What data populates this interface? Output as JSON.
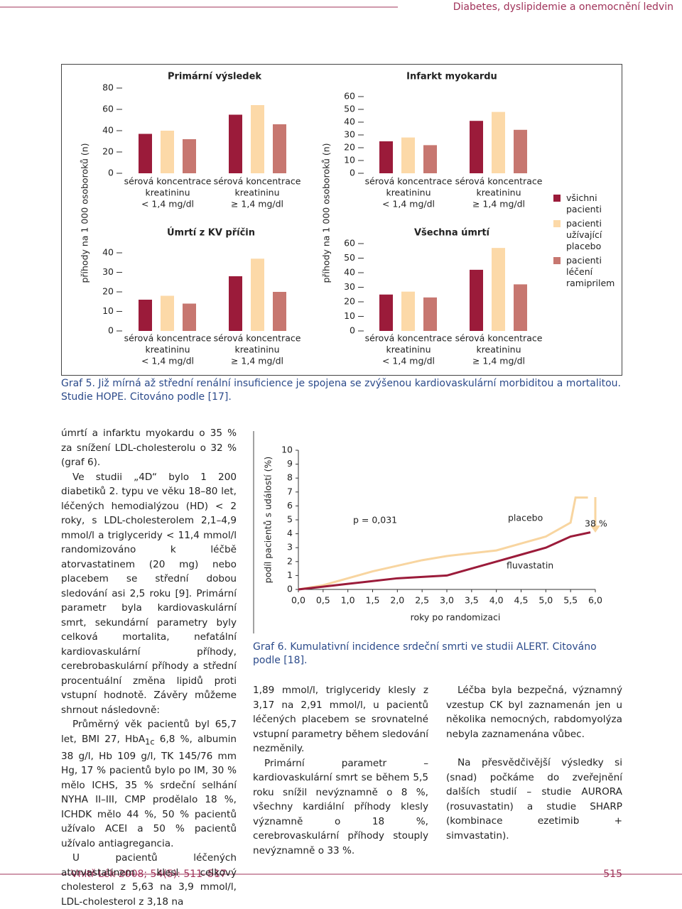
{
  "header": {
    "title": "Diabetes, dyslipidemie a onemocnění ledvin"
  },
  "graf5": {
    "y_label": "příhody na 1 000 osoboroků (n)",
    "categories": [
      [
        "sérová koncentrace",
        "kreatininu",
        "< 1,4 mg/dl"
      ],
      [
        "sérová koncentrace",
        "kreatininu",
        "≥ 1,4 mg/dl"
      ]
    ],
    "series": [
      {
        "name": "všichni pacienti",
        "color": "#9b1b3a"
      },
      {
        "name": "pacienti užívající placebo",
        "color": "#fcd9a8"
      },
      {
        "name": "pacienti léčení ramiprilem",
        "color": "#c77770"
      }
    ],
    "panels": [
      {
        "title": "Primární výsledek",
        "ylim": [
          0,
          80
        ],
        "yticks": [
          0,
          20,
          40,
          60,
          80
        ],
        "series": [
          {
            "values": [
              37,
              55
            ]
          },
          {
            "values": [
              40,
              64
            ]
          },
          {
            "values": [
              32,
              46
            ]
          }
        ]
      },
      {
        "title": "Úmrtí z KV příčin",
        "ylim": [
          0,
          40
        ],
        "yticks": [
          0,
          10,
          20,
          30,
          40
        ],
        "series": [
          {
            "values": [
              16,
              28
            ]
          },
          {
            "values": [
              18,
              37
            ]
          },
          {
            "values": [
              14,
              20
            ]
          }
        ]
      },
      {
        "title": "Infarkt myokardu",
        "ylim": [
          0,
          60
        ],
        "yticks": [
          0,
          10,
          20,
          30,
          40,
          50,
          60
        ],
        "series": [
          {
            "values": [
              25,
              41
            ]
          },
          {
            "values": [
              28,
              48
            ]
          },
          {
            "values": [
              22,
              34
            ]
          }
        ]
      },
      {
        "title": "Všechna úmrtí",
        "ylim": [
          0,
          60
        ],
        "yticks": [
          0,
          10,
          20,
          30,
          40,
          50,
          60
        ],
        "series": [
          {
            "values": [
              25,
              42
            ]
          },
          {
            "values": [
              27,
              57
            ]
          },
          {
            "values": [
              23,
              32
            ]
          }
        ]
      }
    ],
    "caption": "Graf 5. Již mírná až střední renální insuficience je spojena se zvýšenou kardiovaskulární morbiditou a mortalitou. Studie HOPE. Citováno podle [17]."
  },
  "graf6": {
    "type": "line",
    "y_label": "podíl pacientů s událostí (%)",
    "x_label": "roky po randomizaci",
    "xlim": [
      0,
      6
    ],
    "ylim": [
      0,
      10
    ],
    "xticks": [
      {
        "value": 0,
        "label": "0,0"
      },
      {
        "value": 0.5,
        "label": "0,5"
      },
      {
        "value": 1,
        "label": "1,0"
      },
      {
        "value": 1.5,
        "label": "1,5"
      },
      {
        "value": 2,
        "label": "2,0"
      },
      {
        "value": 2.5,
        "label": "2,5"
      },
      {
        "value": 3,
        "label": "3,0"
      },
      {
        "value": 3.5,
        "label": "3,5"
      },
      {
        "value": 4,
        "label": "4,0"
      },
      {
        "value": 4.5,
        "label": "4,5"
      },
      {
        "value": 5,
        "label": "5,0"
      },
      {
        "value": 5.5,
        "label": "5,5"
      },
      {
        "value": 6,
        "label": "6,0"
      }
    ],
    "yticks": [
      0,
      1,
      2,
      3,
      4,
      5,
      6,
      7,
      8,
      9,
      10
    ],
    "series": [
      {
        "name": "placebo",
        "color": "#f8d5a0",
        "x": [
          0,
          0.5,
          1,
          1.5,
          2,
          2.5,
          3,
          3.5,
          4,
          4.5,
          5,
          5.5,
          5.6,
          5.85
        ],
        "values": [
          0,
          0.3,
          0.8,
          1.3,
          1.7,
          2.1,
          2.4,
          2.6,
          2.8,
          3.3,
          3.8,
          4.8,
          6.6,
          6.6
        ]
      },
      {
        "name": "fluvastatin",
        "color": "#9b1b3a",
        "x": [
          0,
          0.5,
          1,
          1.5,
          2,
          2.5,
          3,
          3.5,
          4,
          4.5,
          5,
          5.5,
          5.9
        ],
        "values": [
          0,
          0.2,
          0.4,
          0.6,
          0.8,
          0.9,
          1.0,
          1.5,
          2.0,
          2.5,
          3.0,
          3.8,
          4.1
        ]
      }
    ],
    "annotations": {
      "p": "p = 0,031",
      "reduction": "38 %"
    },
    "caption": "Graf 6. Kumulativní incidence srdeční smrti ve studii ALERT. Citováno podle [18]."
  },
  "columns": [
    {
      "paragraphs": [
        {
          "parts": [
            {
              "text": "úmrtí a infarktu myokardu o 35 % za snížení LDL-cholesterolu o 32 % (graf 6)."
            }
          ]
        },
        {
          "parts": [
            {
              "text": "Ve studii „4D“ bylo 1 200 diabetiků 2. typu ve věku 18–80 let, léčených hemodialýzou (HD) < 2 roky, s LDL-cholesterolem 2,1–4,9 mmol/l a triglyceridy < 11,4 mmol/l randomizováno k léčbě atorvastatinem (20 mg) nebo placebem se střední dobou sledování asi 2,5 roku [9]. Primární parametr byla kardiovaskulární smrt, sekundární parametry byly celková mortalita, nefatální kardiovaskulární příhody, cerebrobaskulární příhody a střední procentuální změna lipidů proti vstupní hodnotě. Závěry můžeme shrnout následovně:"
            }
          ]
        },
        {
          "parts": [
            {
              "text": "Průměrný věk pacientů byl 65,7 let, BMI 27, HbA"
            },
            {
              "text": "1c",
              "style": "sub"
            },
            {
              "text": " 6,8 %, albumin 38 g/l, Hb 109 g/l, TK 145/76 mm Hg, 17 % pacientů bylo po IM, 30 % mělo ICHS, 35 % srdeční selhání NYHA II–III, CMP prodělalo 18 %, ICHDK mělo 44 %, 50 % pacientů užívalo ACEI a 50 % pacientů užívalo antiagregancia."
            }
          ]
        },
        {
          "parts": [
            {
              "text": "U pacientů léčených atorvastatinem klesl celkový cholesterol z 5,63 na 3,9 mmol/l, LDL-cholesterol z 3,18 na"
            }
          ]
        }
      ]
    },
    {
      "paragraphs": [
        {
          "parts": [
            {
              "text": "1,89 mmol/l, triglyceridy klesly z 3,17 na 2,91 mmol/l, u pacientů léčených placebem se srovnatelné vstupní parametry během sledování nezměnily."
            }
          ]
        },
        {
          "parts": [
            {
              "text": "Primární parametr – kardiovaskulární smrt se během 5,5 roku snížil nevýznamně o 8 %, všechny kardiální příhody klesly významně o 18 %, cerebrovaskulární příhody stouply nevýznamně o 33 %."
            }
          ]
        }
      ]
    },
    {
      "paragraphs": [
        {
          "parts": [
            {
              "text": "Léčba byla bezpečná, významný vzestup CK byl zaznamenán jen u několika nemocných, rabdomyolýza nebyla zaznamenána vůbec."
            }
          ]
        },
        {
          "parts": [
            {
              "text": "Na přesvědčivější výsledky si (snad) počkáme do zveřejnění dalších studií – studie AURORA (rosuvastatin) a studie SHARP (kombinace ezetimib + simvastatin)."
            }
          ]
        }
      ]
    }
  ],
  "footer": {
    "citation": "Vnitř Lék 2008; 54(5): 511–517",
    "page": "515"
  }
}
